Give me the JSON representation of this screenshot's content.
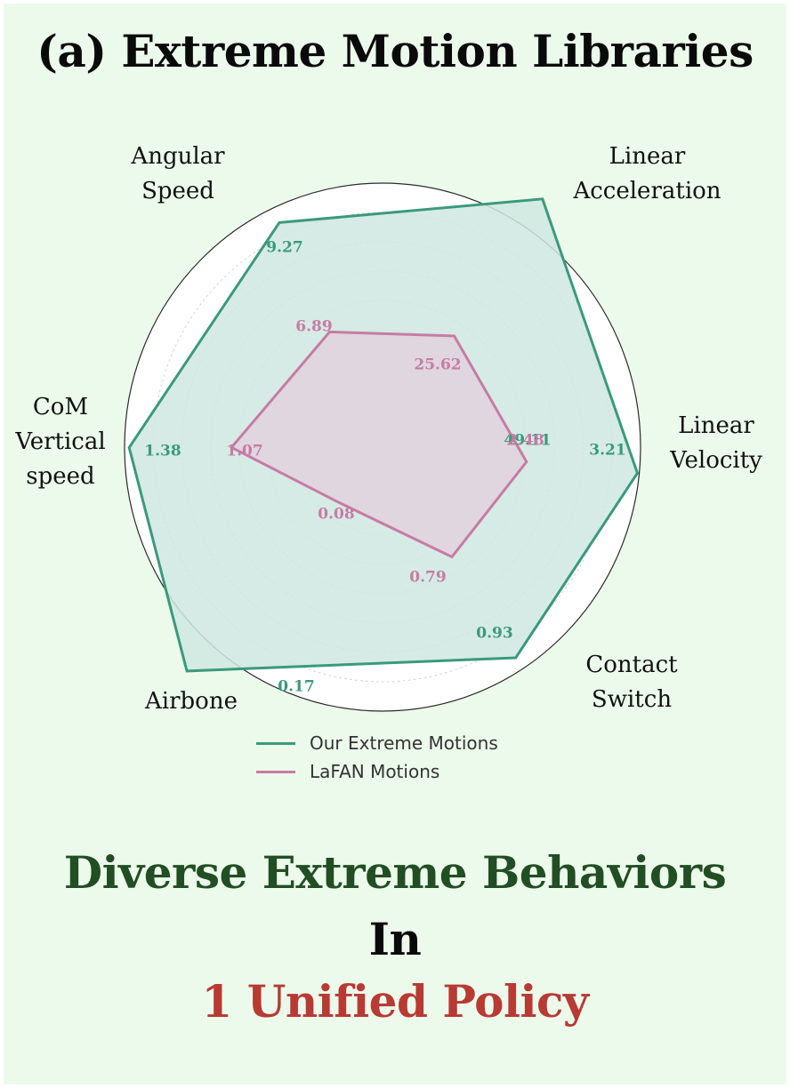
{
  "title": "(a) Extreme Motion Libraries",
  "colors": {
    "extreme": "#3a9a7c",
    "extreme_fill": "#cfe8e1",
    "lafan": "#c77ba4",
    "lafan_fill": "#e0d2de",
    "slogan_green": "#214e22",
    "slogan_black": "#0a0a0a",
    "slogan_red": "#b83a33"
  },
  "chart_data": {
    "type": "radar",
    "axes": [
      {
        "id": "linear-velocity",
        "label": "Linear\nVelocity"
      },
      {
        "id": "linear-acceleration",
        "label": "Linear\nAcceleration"
      },
      {
        "id": "angular-speed",
        "label": "Angular\nSpeed"
      },
      {
        "id": "com-vertical-speed",
        "label": "CoM\nVertical\nspeed"
      },
      {
        "id": "airbone",
        "label": "Airbone"
      },
      {
        "id": "contact-switch",
        "label": "Contact\nSwitch"
      }
    ],
    "series": [
      {
        "name": "Our Extreme Motions",
        "values": [
          3.21,
          49.11,
          9.27,
          1.38,
          0.17,
          0.93
        ],
        "labels": [
          "3.21",
          "49.11",
          "9.27",
          "1.38",
          "0.17",
          "0.93"
        ]
      },
      {
        "name": "LaFAN Motions",
        "values": [
          2.48,
          25.62,
          6.89,
          1.07,
          0.08,
          0.79
        ],
        "labels": [
          "2.48",
          "25.62",
          "6.89",
          "1.07",
          "0.08",
          "0.79"
        ]
      }
    ],
    "grid": true,
    "legend": "bottom-center"
  },
  "slogan": {
    "line1": "Diverse Extreme Behaviors",
    "line2": "In",
    "line3": "1 Unified Policy"
  }
}
